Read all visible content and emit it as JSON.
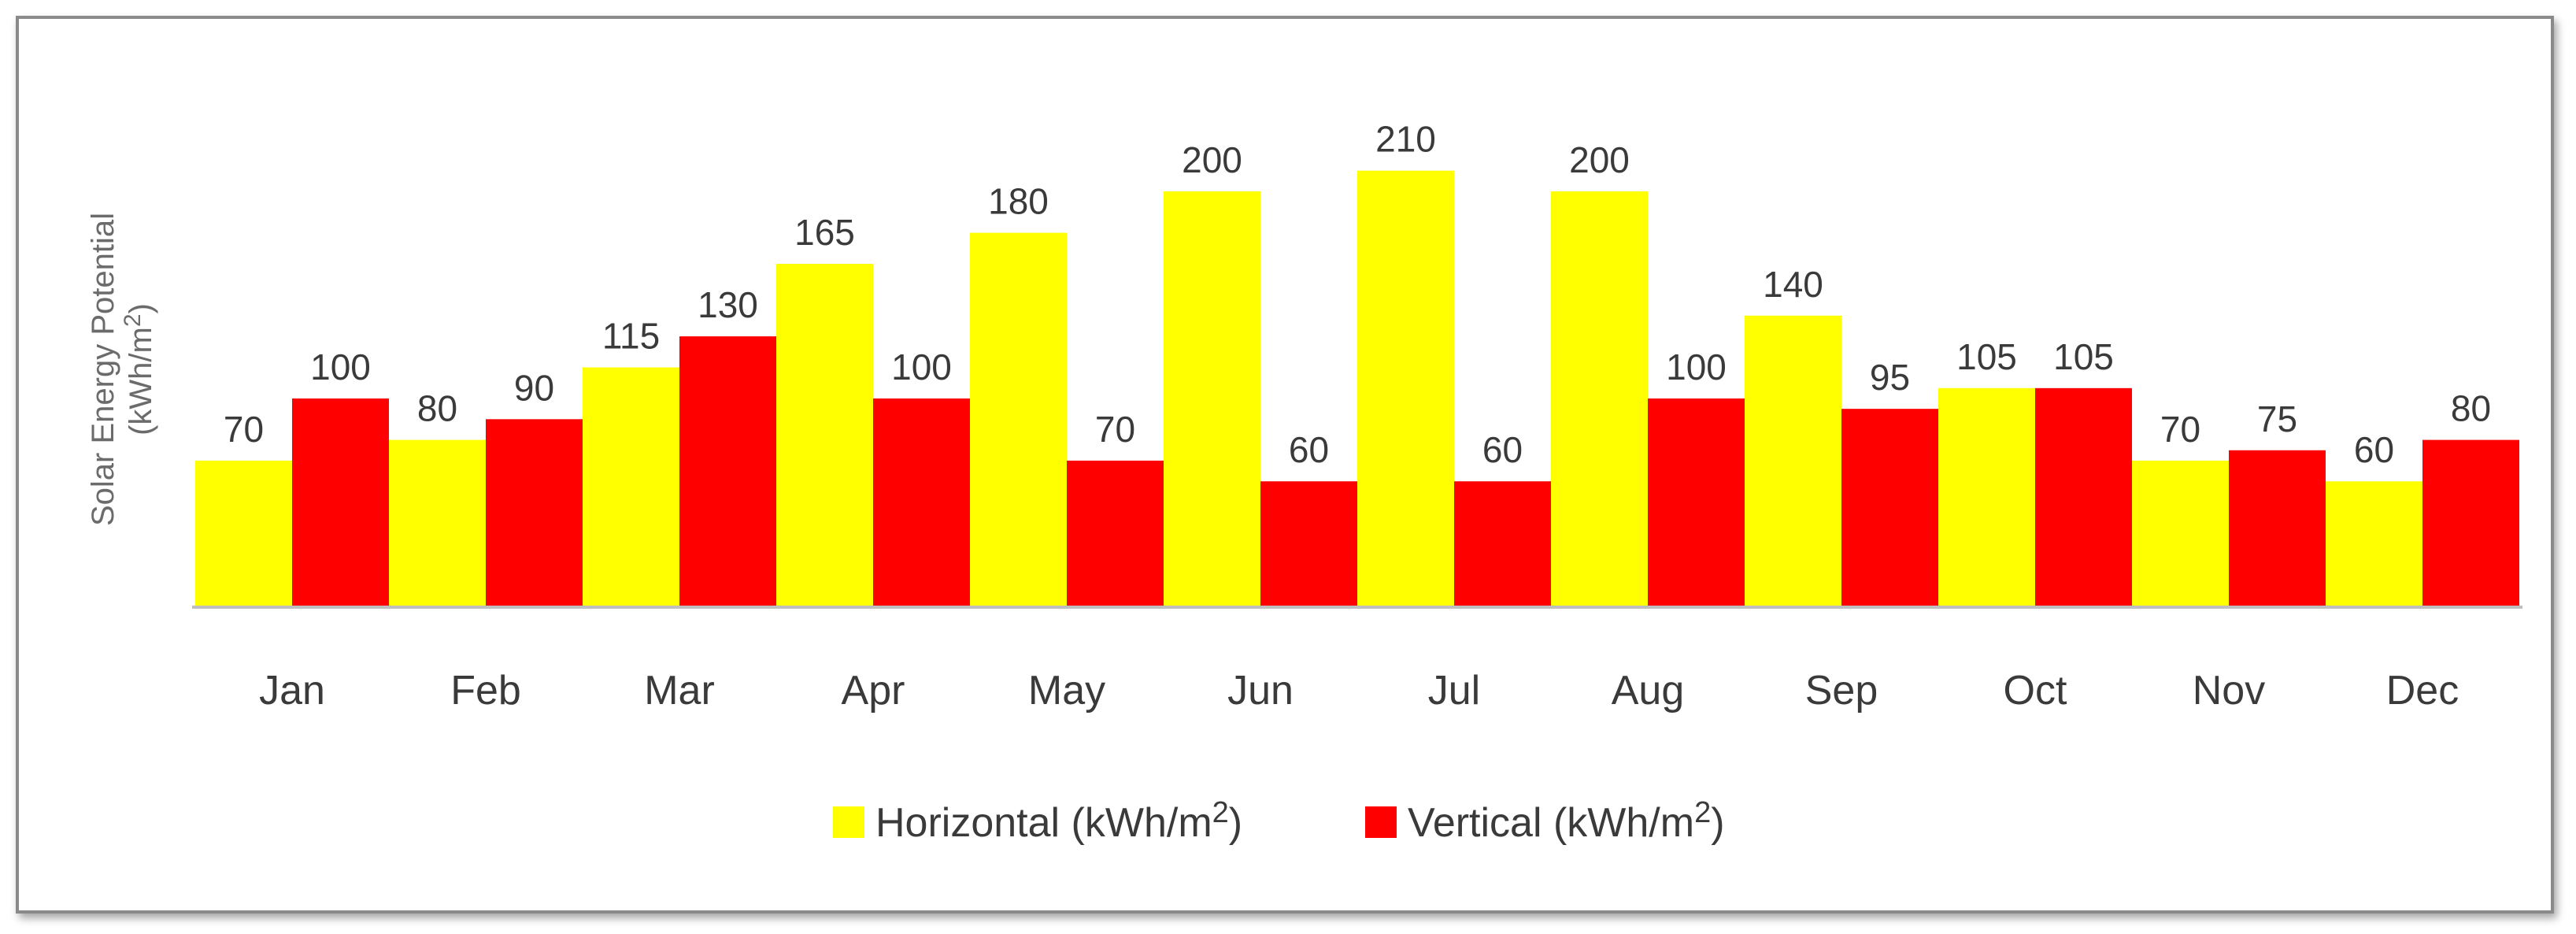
{
  "chart_data": {
    "type": "bar",
    "categories": [
      "Jan",
      "Feb",
      "Mar",
      "Apr",
      "May",
      "Jun",
      "Jul",
      "Aug",
      "Sep",
      "Oct",
      "Nov",
      "Dec"
    ],
    "series": [
      {
        "name": "Horizontal (kWh/m2)",
        "color": "#ffff00",
        "values": [
          70,
          80,
          115,
          165,
          180,
          200,
          210,
          200,
          140,
          105,
          70,
          60
        ]
      },
      {
        "name": "Vertical (kWh/m2)",
        "color": "#ff0000",
        "values": [
          100,
          90,
          130,
          100,
          70,
          60,
          60,
          100,
          95,
          105,
          75,
          80
        ]
      }
    ],
    "ylabel_line1": "Solar Energy Potential",
    "ylabel_line2": "(kWh/m2)",
    "xlabel": "",
    "title": "",
    "ylim": [
      0,
      210
    ],
    "grid": false,
    "legend_position": "bottom"
  }
}
